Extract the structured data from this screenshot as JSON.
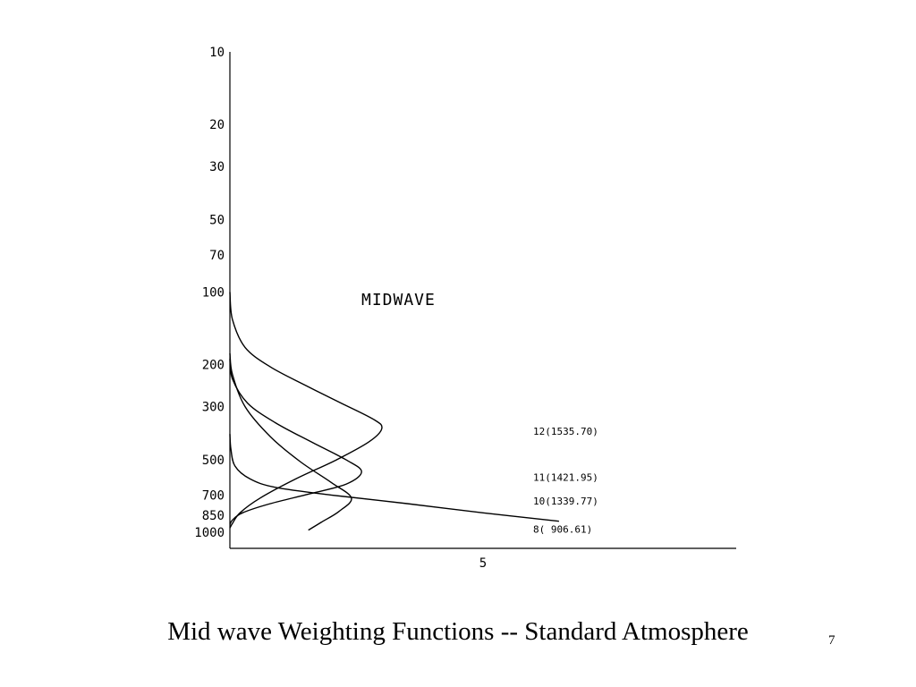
{
  "chart_data": {
    "type": "line",
    "title": "MIDWAVE",
    "xlabel": "",
    "ylabel": "",
    "y_scale": "log",
    "y_inverted": true,
    "y_ticks": [
      10,
      20,
      30,
      50,
      70,
      100,
      200,
      300,
      500,
      700,
      850,
      1000
    ],
    "x_ticks": [
      5
    ],
    "xlim": [
      0,
      10
    ],
    "ylim": [
      1000,
      10
    ],
    "grid": false,
    "series": [
      {
        "name": "12(1535.70)",
        "x": [
          0,
          0.05,
          0.3,
          0.8,
          1.5,
          2.2,
          2.85,
          3.0,
          2.75,
          2.1,
          1.3,
          0.6,
          0.2,
          0.05,
          0
        ],
        "y": [
          100,
          130,
          170,
          205,
          245,
          290,
          340,
          370,
          420,
          500,
          600,
          720,
          830,
          920,
          960
        ]
      },
      {
        "name": "11(1421.95)",
        "x": [
          0,
          0.05,
          0.35,
          0.9,
          1.6,
          2.3,
          2.6,
          2.3,
          1.6,
          0.8,
          0.25,
          0.05,
          0
        ],
        "y": [
          190,
          230,
          290,
          350,
          420,
          500,
          560,
          630,
          690,
          760,
          830,
          890,
          930
        ]
      },
      {
        "name": "10(1339.77)",
        "x": [
          0,
          0.05,
          0.3,
          0.8,
          1.4,
          2.0,
          2.4,
          2.15,
          1.8,
          1.55
        ],
        "y": [
          180,
          220,
          300,
          400,
          510,
          620,
          720,
          820,
          910,
          980
        ]
      },
      {
        "name": "8( 906.61)",
        "x": [
          0,
          0.02,
          0.1,
          0.4,
          0.9,
          2.0,
          3.5,
          5.0,
          6.5
        ],
        "y": [
          390,
          450,
          530,
          600,
          650,
          700,
          760,
          830,
          900
        ]
      }
    ],
    "series_label_y": [
      380,
      590,
      740,
      970
    ]
  },
  "caption": {
    "title": "Mid wave Weighting Functions -- Standard Atmosphere",
    "slide_number": "7"
  }
}
